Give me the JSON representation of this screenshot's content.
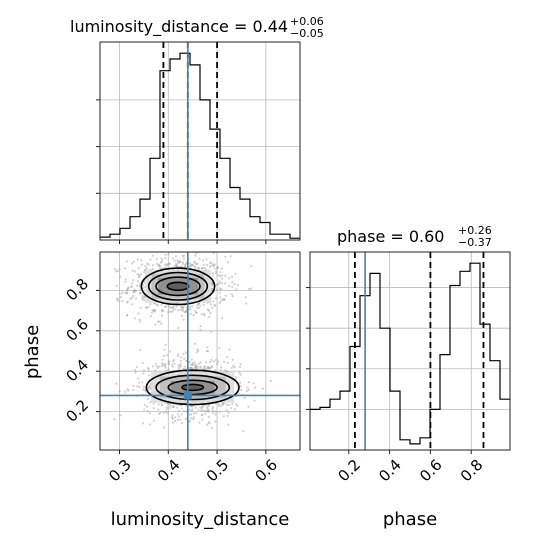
{
  "chart_data": {
    "type": "corner",
    "parameters": [
      "luminosity_distance",
      "phase"
    ],
    "truths": {
      "luminosity_distance": 0.44,
      "phase": 0.28
    },
    "titles": [
      {
        "param": "luminosity_distance",
        "prefix": "luminosity_distance = 0.44",
        "sup": "+0.06",
        "sub": "−0.05"
      },
      {
        "param": "phase",
        "prefix": "phase = 0.60",
        "sup": "+0.26",
        "sub": "−0.37"
      }
    ],
    "axes": {
      "luminosity_distance": {
        "label": "luminosity_distance",
        "range": [
          0.26,
          0.67
        ],
        "ticks": [
          0.3,
          0.4,
          0.5,
          0.6
        ],
        "tick_labels": [
          "0.3",
          "0.4",
          "0.5",
          "0.6"
        ]
      },
      "phase": {
        "label": "phase",
        "range": [
          0.01,
          0.99
        ],
        "ticks": [
          0.2,
          0.4,
          0.6,
          0.8
        ],
        "tick_labels": [
          "0.2",
          "0.4",
          "0.6",
          "0.8"
        ]
      }
    },
    "marginal_luminosity_distance": {
      "bin_edges": [
        0.26,
        0.2805,
        0.301,
        0.3215,
        0.342,
        0.3625,
        0.383,
        0.4035,
        0.424,
        0.4445,
        0.465,
        0.4855,
        0.506,
        0.5265,
        0.547,
        0.5675,
        0.588,
        0.6085,
        0.629,
        0.6495,
        0.67
      ],
      "counts": [
        0.5,
        1.0,
        2.0,
        4.0,
        7.0,
        14.0,
        29.0,
        31.0,
        32.0,
        30.0,
        24.0,
        19.0,
        14.0,
        9.0,
        7.0,
        4.0,
        3.0,
        1.0,
        1.0,
        0.3
      ],
      "quantiles": [
        0.39,
        0.44,
        0.5
      ]
    },
    "marginal_phase": {
      "bin_edges": [
        0.01,
        0.059,
        0.108,
        0.157,
        0.206,
        0.255,
        0.304,
        0.353,
        0.402,
        0.451,
        0.5,
        0.549,
        0.598,
        0.647,
        0.696,
        0.745,
        0.794,
        0.843,
        0.892,
        0.941,
        0.99
      ],
      "counts": [
        20.0,
        21.0,
        25.0,
        29.0,
        51.0,
        76.0,
        87.0,
        60.0,
        29.0,
        5.0,
        3.0,
        6.0,
        20.0,
        47.0,
        81.0,
        88.0,
        92.0,
        62.0,
        44.0,
        25.0
      ],
      "quantiles": [
        0.23,
        0.6,
        0.86
      ]
    },
    "joint_modes": [
      {
        "luminosity_distance": 0.42,
        "phase": 0.82,
        "contour_half_widths": [
          [
            0.022,
            0.02
          ],
          [
            0.045,
            0.045
          ],
          [
            0.06,
            0.068
          ],
          [
            0.075,
            0.09
          ]
        ]
      },
      {
        "luminosity_distance": 0.45,
        "phase": 0.32,
        "contour_half_widths": [
          [
            0.022,
            0.015
          ],
          [
            0.05,
            0.035
          ],
          [
            0.075,
            0.06
          ],
          [
            0.095,
            0.085
          ]
        ]
      }
    ],
    "colors": {
      "truth": "#4682b4",
      "histogram": "#000000",
      "quantile": "#000000",
      "grid": "#bbbbbb"
    },
    "grid": true
  }
}
